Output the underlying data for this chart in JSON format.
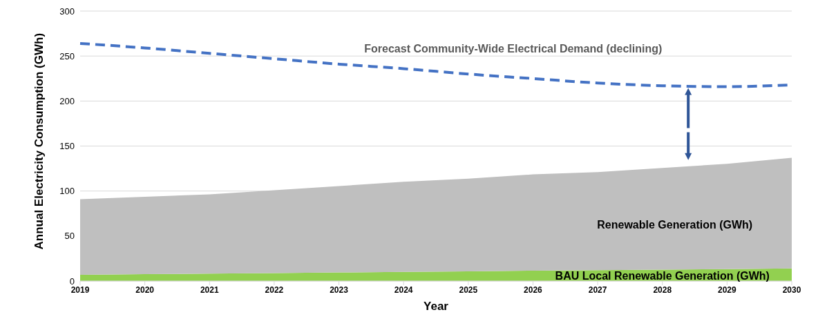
{
  "chart_data": {
    "type": "area",
    "stacked": true,
    "xlabel": "Year",
    "ylabel": "Annual Electricity Consumption (GWh)",
    "categories": [
      "2019",
      "2020",
      "2021",
      "2022",
      "2023",
      "2024",
      "2025",
      "2026",
      "2027",
      "2028",
      "2029",
      "2030"
    ],
    "series": [
      {
        "name": "BAU Local Renewable Generation (GWh)",
        "color": "#92d050",
        "values": [
          7,
          7.6,
          8.3,
          8.9,
          9.5,
          10.2,
          10.8,
          11.5,
          12,
          12.7,
          13.3,
          14
        ]
      },
      {
        "name": "Renewable Generation (GWh)",
        "color": "#bfbfbf",
        "values": [
          84,
          86,
          88,
          92,
          96,
          100,
          103,
          107,
          109,
          113,
          117,
          123
        ]
      },
      {
        "name": "Forecast Community-Wide Electrical Demand (declining)",
        "type": "line",
        "color": "#4472c4",
        "line_style": "dashed",
        "values": [
          264,
          259,
          253,
          247,
          241,
          236,
          230,
          225,
          220,
          217,
          216,
          218
        ]
      }
    ],
    "ylim": [
      0,
      300
    ],
    "yticks": [
      0,
      50,
      100,
      150,
      200,
      250,
      300
    ],
    "grid": "y",
    "legend": false
  }
}
